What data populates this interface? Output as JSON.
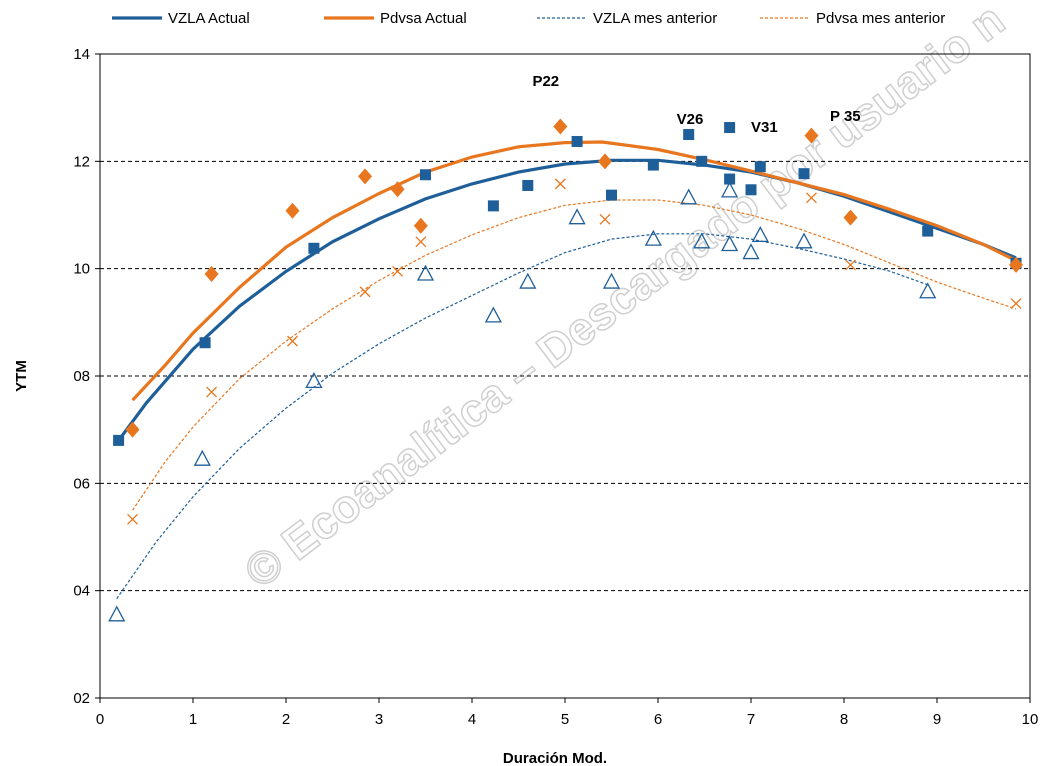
{
  "chart_data": {
    "type": "scatter",
    "xlabel": "Duración Mod.",
    "ylabel": "YTM",
    "xlim": [
      0,
      10
    ],
    "ylim": [
      2,
      14
    ],
    "x_ticks": [
      "0",
      "1",
      "2",
      "3",
      "4",
      "5",
      "6",
      "7",
      "8",
      "9",
      "10"
    ],
    "y_ticks": [
      "02",
      "04",
      "06",
      "08",
      "10",
      "12",
      "14"
    ],
    "grid": "horizontal-dashed",
    "legend_position": "top",
    "watermark": "© Ecoanalítica – Descargado por usuario n",
    "annotations": [
      {
        "text": "P22",
        "x": 4.65,
        "y": 13.4
      },
      {
        "text": "V26",
        "x": 6.2,
        "y": 12.7
      },
      {
        "text": "V31",
        "x": 7.0,
        "y": 12.55
      },
      {
        "text": "P 35",
        "x": 7.85,
        "y": 12.75
      }
    ],
    "series": [
      {
        "name": "VZLA Actual",
        "color": "#1f5f99",
        "marker": "square",
        "line": "solid",
        "points": [
          [
            0.2,
            6.8
          ],
          [
            1.13,
            8.62
          ],
          [
            2.3,
            10.38
          ],
          [
            3.5,
            11.75
          ],
          [
            4.23,
            11.17
          ],
          [
            4.6,
            11.55
          ],
          [
            5.13,
            12.37
          ],
          [
            5.5,
            11.37
          ],
          [
            5.95,
            11.93
          ],
          [
            6.33,
            12.5
          ],
          [
            6.47,
            12.0
          ],
          [
            6.77,
            11.67
          ],
          [
            6.77,
            12.63
          ],
          [
            7.0,
            11.47
          ],
          [
            7.1,
            11.9
          ],
          [
            7.57,
            11.77
          ],
          [
            8.9,
            10.7
          ],
          [
            9.85,
            10.1
          ]
        ],
        "trend": [
          [
            0.2,
            6.8
          ],
          [
            0.5,
            7.5
          ],
          [
            1.0,
            8.5
          ],
          [
            1.5,
            9.3
          ],
          [
            2.0,
            9.95
          ],
          [
            2.5,
            10.5
          ],
          [
            3.0,
            10.93
          ],
          [
            3.5,
            11.3
          ],
          [
            4.0,
            11.58
          ],
          [
            4.5,
            11.8
          ],
          [
            5.0,
            11.95
          ],
          [
            5.5,
            12.02
          ],
          [
            6.0,
            12.02
          ],
          [
            6.5,
            11.93
          ],
          [
            7.0,
            11.8
          ],
          [
            7.5,
            11.6
          ],
          [
            8.0,
            11.35
          ],
          [
            8.5,
            11.05
          ],
          [
            9.0,
            10.75
          ],
          [
            9.5,
            10.45
          ],
          [
            9.85,
            10.2
          ]
        ]
      },
      {
        "name": "Pdvsa Actual",
        "color": "#e8761e",
        "marker": "diamond",
        "line": "solid",
        "points": [
          [
            0.35,
            7.0
          ],
          [
            1.2,
            9.9
          ],
          [
            2.07,
            11.08
          ],
          [
            2.85,
            11.72
          ],
          [
            3.2,
            11.48
          ],
          [
            3.45,
            10.8
          ],
          [
            4.95,
            12.65
          ],
          [
            5.43,
            12.0
          ],
          [
            7.65,
            12.48
          ],
          [
            8.07,
            10.95
          ],
          [
            9.85,
            10.07
          ]
        ],
        "trend": [
          [
            0.35,
            7.55
          ],
          [
            0.7,
            8.2
          ],
          [
            1.0,
            8.8
          ],
          [
            1.5,
            9.65
          ],
          [
            2.0,
            10.4
          ],
          [
            2.5,
            10.95
          ],
          [
            3.0,
            11.4
          ],
          [
            3.5,
            11.8
          ],
          [
            4.0,
            12.08
          ],
          [
            4.5,
            12.27
          ],
          [
            5.0,
            12.35
          ],
          [
            5.4,
            12.36
          ],
          [
            6.0,
            12.22
          ],
          [
            6.5,
            12.03
          ],
          [
            7.0,
            11.82
          ],
          [
            7.5,
            11.6
          ],
          [
            8.0,
            11.38
          ],
          [
            8.5,
            11.1
          ],
          [
            9.0,
            10.8
          ],
          [
            9.5,
            10.45
          ],
          [
            9.85,
            10.15
          ]
        ]
      },
      {
        "name": "VZLA mes anterior",
        "color": "#1f5f99",
        "marker": "triangle",
        "line": "dashed",
        "points": [
          [
            0.18,
            3.55
          ],
          [
            1.1,
            6.45
          ],
          [
            2.3,
            7.9
          ],
          [
            3.5,
            9.9
          ],
          [
            4.23,
            9.12
          ],
          [
            4.6,
            9.75
          ],
          [
            5.13,
            10.95
          ],
          [
            5.5,
            9.75
          ],
          [
            5.95,
            10.55
          ],
          [
            6.33,
            11.32
          ],
          [
            6.47,
            10.5
          ],
          [
            6.77,
            11.45
          ],
          [
            6.77,
            10.45
          ],
          [
            7.0,
            10.3
          ],
          [
            7.1,
            10.62
          ],
          [
            7.57,
            10.5
          ],
          [
            8.9,
            9.57
          ]
        ],
        "trend": [
          [
            0.18,
            3.85
          ],
          [
            0.6,
            4.9
          ],
          [
            1.0,
            5.75
          ],
          [
            1.5,
            6.65
          ],
          [
            2.0,
            7.4
          ],
          [
            2.5,
            8.05
          ],
          [
            3.0,
            8.6
          ],
          [
            3.5,
            9.08
          ],
          [
            4.0,
            9.5
          ],
          [
            4.5,
            9.92
          ],
          [
            5.0,
            10.3
          ],
          [
            5.5,
            10.55
          ],
          [
            6.0,
            10.65
          ],
          [
            6.5,
            10.65
          ],
          [
            7.0,
            10.55
          ],
          [
            7.5,
            10.38
          ],
          [
            8.0,
            10.18
          ],
          [
            8.5,
            9.95
          ],
          [
            8.9,
            9.7
          ]
        ]
      },
      {
        "name": "Pdvsa mes anterior",
        "color": "#e8761e",
        "marker": "x",
        "line": "dashed",
        "points": [
          [
            0.35,
            5.33
          ],
          [
            1.2,
            7.7
          ],
          [
            2.07,
            8.65
          ],
          [
            2.85,
            9.57
          ],
          [
            3.2,
            9.95
          ],
          [
            3.45,
            10.5
          ],
          [
            4.95,
            11.58
          ],
          [
            5.43,
            10.92
          ],
          [
            7.65,
            11.32
          ],
          [
            8.07,
            10.07
          ],
          [
            9.85,
            9.35
          ]
        ],
        "trend": [
          [
            0.35,
            5.5
          ],
          [
            0.7,
            6.4
          ],
          [
            1.0,
            7.05
          ],
          [
            1.5,
            7.95
          ],
          [
            2.0,
            8.65
          ],
          [
            2.5,
            9.25
          ],
          [
            3.0,
            9.78
          ],
          [
            3.5,
            10.25
          ],
          [
            4.0,
            10.63
          ],
          [
            4.5,
            10.95
          ],
          [
            5.0,
            11.18
          ],
          [
            5.5,
            11.28
          ],
          [
            6.0,
            11.28
          ],
          [
            6.5,
            11.18
          ],
          [
            7.0,
            11.0
          ],
          [
            7.5,
            10.75
          ],
          [
            8.0,
            10.45
          ],
          [
            8.5,
            10.1
          ],
          [
            9.0,
            9.75
          ],
          [
            9.5,
            9.45
          ],
          [
            9.85,
            9.25
          ]
        ]
      }
    ]
  }
}
